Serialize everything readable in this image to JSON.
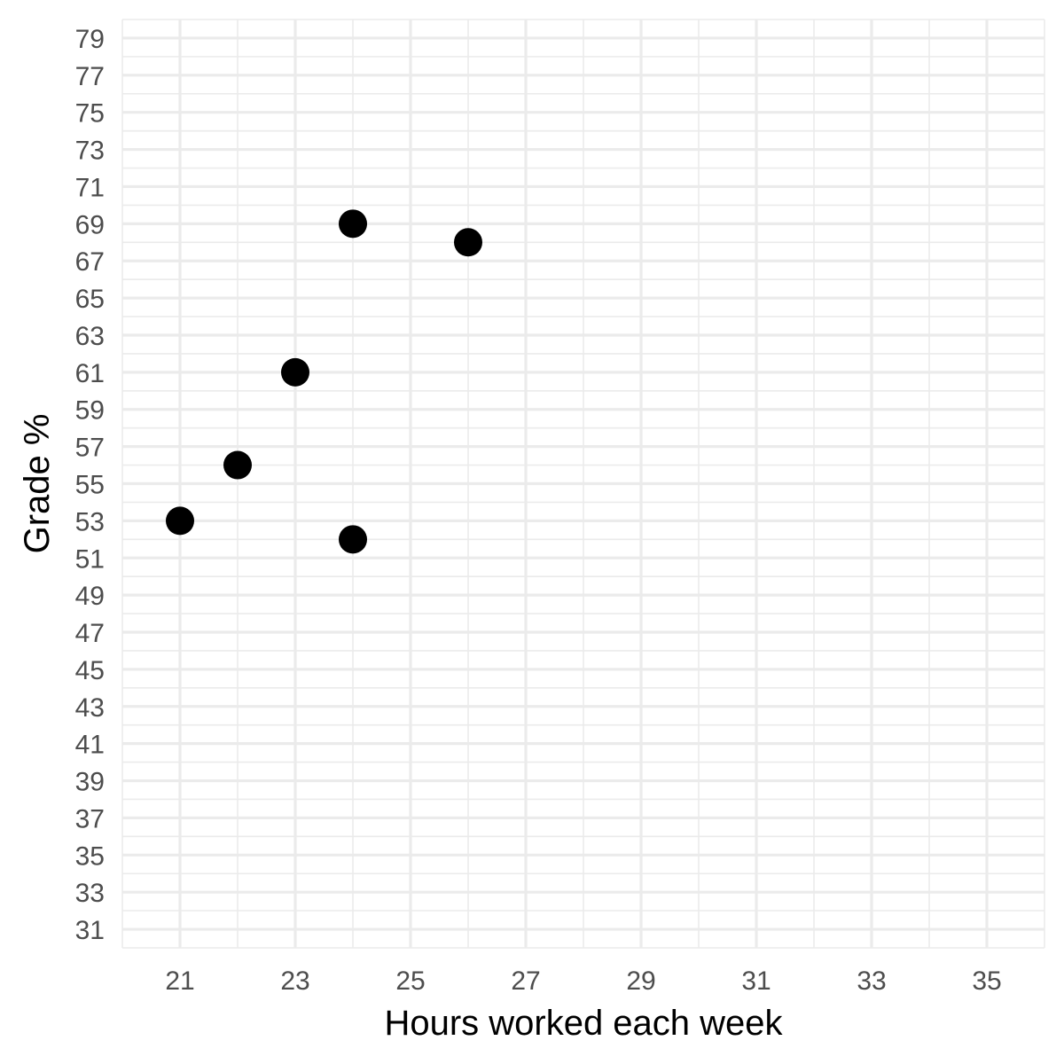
{
  "chart_data": {
    "type": "scatter",
    "title": "",
    "xlabel": "Hours worked each week",
    "ylabel": "Grade %",
    "xlim": [
      20,
      36
    ],
    "ylim": [
      30,
      80
    ],
    "x_ticks": [
      21,
      23,
      25,
      27,
      29,
      31,
      33,
      35
    ],
    "y_ticks": [
      31,
      33,
      35,
      37,
      39,
      41,
      43,
      45,
      47,
      49,
      51,
      53,
      55,
      57,
      59,
      61,
      63,
      65,
      67,
      69,
      71,
      73,
      75,
      77,
      79
    ],
    "grid": true,
    "points": [
      {
        "x": 21,
        "y": 53
      },
      {
        "x": 22,
        "y": 56
      },
      {
        "x": 23,
        "y": 61
      },
      {
        "x": 24,
        "y": 69
      },
      {
        "x": 24,
        "y": 52
      },
      {
        "x": 26,
        "y": 68
      }
    ],
    "colors": {
      "point": "#000000",
      "grid": "#ebebeb",
      "tick_text": "#4d4d4d"
    }
  }
}
